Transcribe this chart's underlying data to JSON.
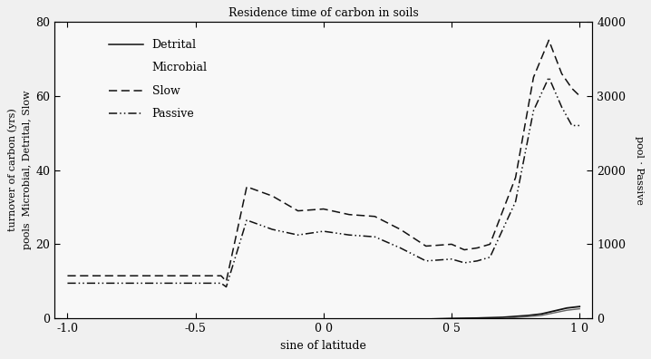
{
  "title": "Residence time of carbon in soils",
  "xlabel": "sine of latitude",
  "ylabel_left": "turnover of carbon (yrs)\npools  Microbial, Detrital, Slow",
  "ylabel_right": "pool · Passive",
  "xlim": [
    -1.05,
    1.05
  ],
  "ylim_left": [
    0,
    80
  ],
  "ylim_right": [
    0,
    4000
  ],
  "xticks": [
    -1.0,
    -0.5,
    0.0,
    0.5,
    1.0
  ],
  "xticklabels": [
    "-1.0",
    "-0.5",
    "0 0",
    "0 5",
    "1 0"
  ],
  "yticks_left": [
    0,
    20,
    40,
    60,
    80
  ],
  "yticks_right": [
    0,
    1000,
    2000,
    3000,
    4000
  ],
  "slow_x": [
    -1.0,
    -0.9,
    -0.8,
    -0.7,
    -0.6,
    -0.5,
    -0.4,
    -0.38,
    -0.3,
    -0.2,
    -0.1,
    0.0,
    0.1,
    0.2,
    0.3,
    0.4,
    0.5,
    0.55,
    0.6,
    0.65,
    0.75,
    0.82,
    0.88,
    0.93,
    0.97,
    1.0
  ],
  "slow_y": [
    11.5,
    11.5,
    11.5,
    11.5,
    11.5,
    11.5,
    11.5,
    10.0,
    35.5,
    33.0,
    29.0,
    29.5,
    28.0,
    27.5,
    24.0,
    19.5,
    20.0,
    18.5,
    19.0,
    20.0,
    38.0,
    65.0,
    75.0,
    66.0,
    62.0,
    60.0
  ],
  "passive_x": [
    -1.0,
    -0.9,
    -0.8,
    -0.7,
    -0.6,
    -0.5,
    -0.4,
    -0.38,
    -0.3,
    -0.2,
    -0.1,
    0.0,
    0.1,
    0.2,
    0.3,
    0.4,
    0.5,
    0.55,
    0.6,
    0.65,
    0.75,
    0.82,
    0.88,
    0.93,
    0.97,
    1.0
  ],
  "passive_y": [
    9.5,
    9.5,
    9.5,
    9.5,
    9.5,
    9.5,
    9.5,
    8.5,
    26.5,
    24.0,
    22.5,
    23.5,
    22.5,
    22.0,
    19.0,
    15.5,
    16.0,
    15.0,
    15.5,
    16.5,
    31.5,
    56.0,
    65.0,
    57.0,
    52.0,
    52.0
  ],
  "detrital_x": [
    -1.0,
    -0.8,
    -0.6,
    -0.4,
    -0.2,
    0.0,
    0.2,
    0.4,
    0.5,
    0.6,
    0.7,
    0.8,
    0.85,
    0.9,
    0.95,
    1.0
  ],
  "detrital_y": [
    -0.3,
    -0.3,
    -0.3,
    -0.3,
    -0.3,
    -0.2,
    -0.2,
    -0.2,
    0.0,
    0.1,
    0.3,
    0.8,
    1.2,
    2.0,
    2.8,
    3.2
  ],
  "microbial_x": [
    -1.0,
    -0.8,
    -0.6,
    -0.4,
    -0.2,
    0.0,
    0.2,
    0.4,
    0.5,
    0.6,
    0.7,
    0.8,
    0.85,
    0.9,
    0.95,
    1.0
  ],
  "microbial_y": [
    -0.5,
    -0.5,
    -0.5,
    -0.5,
    -0.5,
    -0.5,
    -0.5,
    -0.5,
    -0.3,
    -0.2,
    0.0,
    0.5,
    0.8,
    1.5,
    2.2,
    2.6
  ],
  "background_color": "#f0f0f0",
  "line_color_dark": "#222222",
  "line_color_mid": "#555555",
  "font_family": "DejaVu Serif"
}
